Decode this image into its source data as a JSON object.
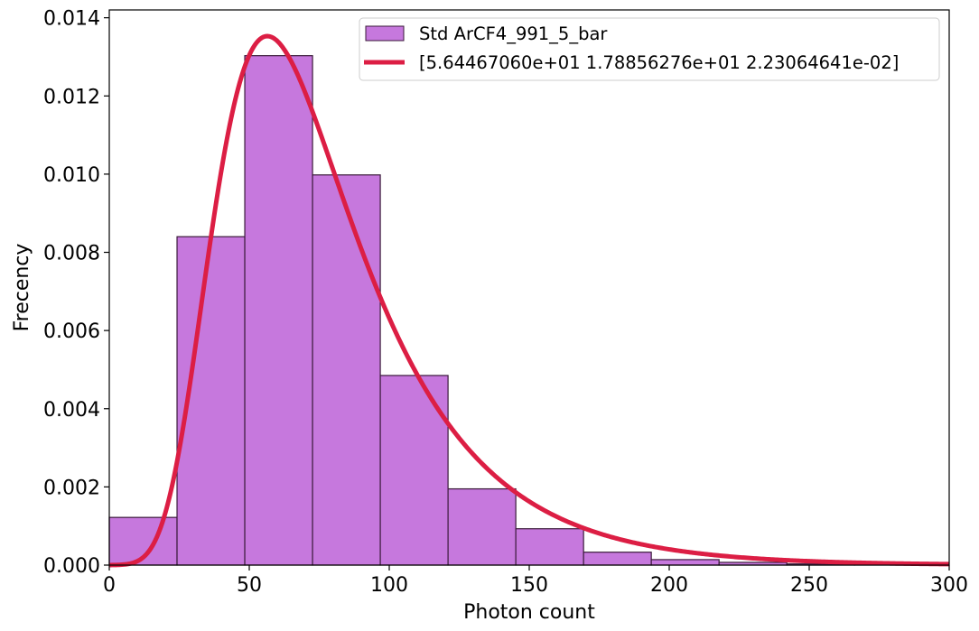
{
  "chart_data": {
    "type": "bar",
    "title": "",
    "xlabel": "Photon count",
    "ylabel": "Frecency",
    "xlim": [
      0,
      300
    ],
    "ylim": [
      0,
      0.0142
    ],
    "xticks": [
      {
        "value": 0,
        "label": "0"
      },
      {
        "value": 50,
        "label": "50"
      },
      {
        "value": 100,
        "label": "100"
      },
      {
        "value": 150,
        "label": "150"
      },
      {
        "value": 200,
        "label": "200"
      },
      {
        "value": 250,
        "label": "250"
      },
      {
        "value": 300,
        "label": "300"
      }
    ],
    "yticks": [
      {
        "value": 0,
        "label": "0.000"
      },
      {
        "value": 0.002,
        "label": "0.002"
      },
      {
        "value": 0.004,
        "label": "0.004"
      },
      {
        "value": 0.006,
        "label": "0.006"
      },
      {
        "value": 0.008,
        "label": "0.008"
      },
      {
        "value": 0.01,
        "label": "0.010"
      },
      {
        "value": 0.012,
        "label": "0.012"
      },
      {
        "value": 0.014,
        "label": "0.014"
      }
    ],
    "grid": false,
    "legend_position": "top-right",
    "histogram": {
      "name": "Std ArCF4_991_5_bar",
      "color": "#c678dd",
      "edge_color": "#3a1a3a",
      "bin_edges": [
        0,
        24.2,
        48.4,
        72.6,
        96.8,
        121.0,
        145.2,
        169.4,
        193.6,
        217.8,
        242.0,
        266.2,
        290.4
      ],
      "values": [
        0.00122,
        0.0084,
        0.01303,
        0.00998,
        0.00485,
        0.00195,
        0.00093,
        0.00033,
        0.00014,
        7e-05,
        3e-05,
        1e-05
      ]
    },
    "fit": {
      "name": "[5.64467060e+01 1.78856276e+01 2.23064641e-02]",
      "color": "#dc1e44",
      "model": "landau (moyal)",
      "params": [
        56.446706,
        17.8856276,
        0.0223064641
      ]
    }
  }
}
